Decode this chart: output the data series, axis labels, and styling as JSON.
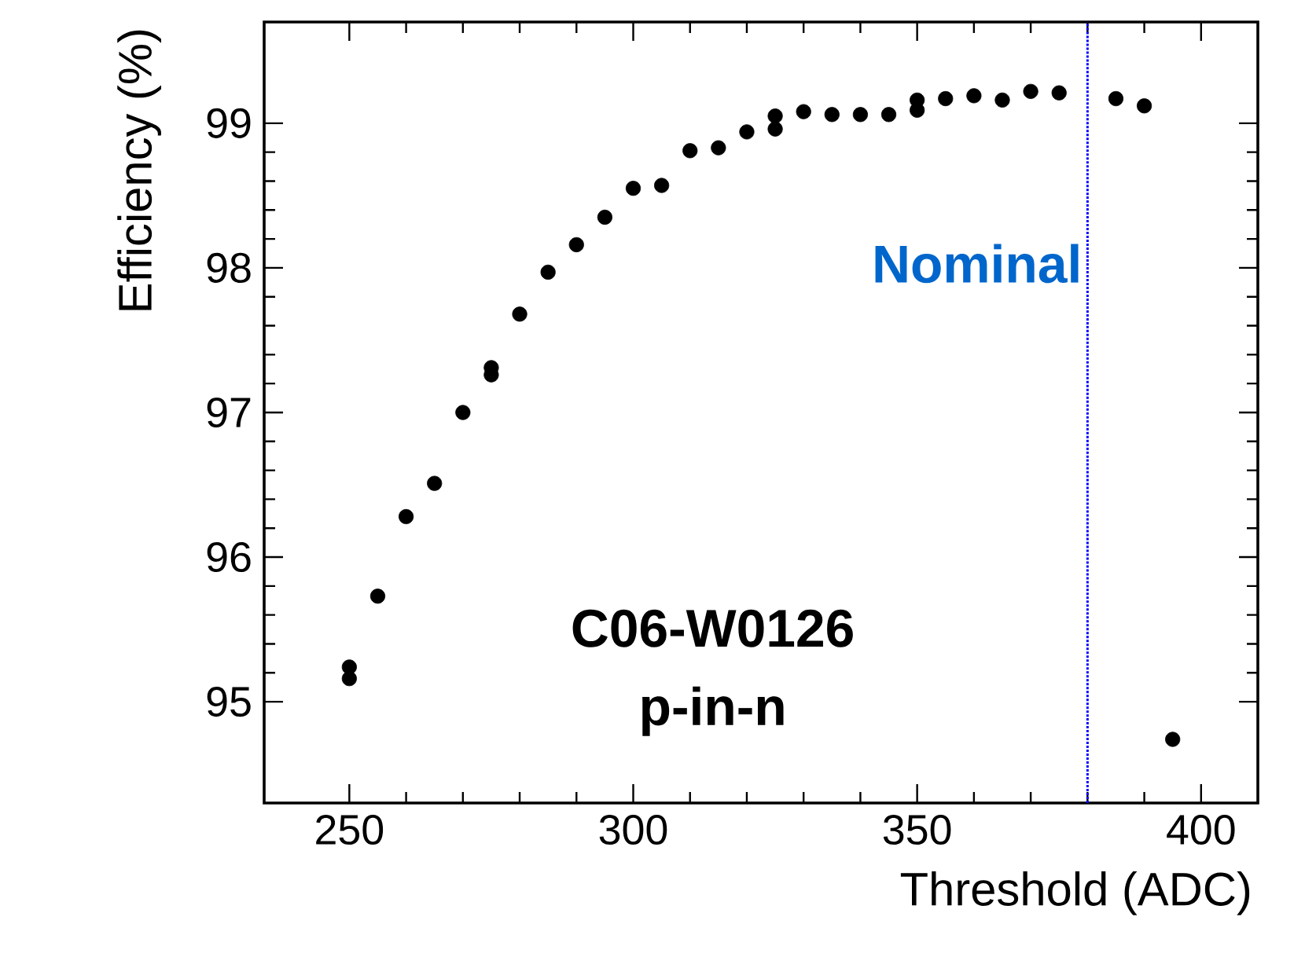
{
  "chart_data": {
    "type": "scatter",
    "xlabel": "Threshold (ADC)",
    "ylabel": "Efficiency (%)",
    "xlim": [
      235,
      410
    ],
    "xticks": [
      250,
      300,
      350,
      400
    ],
    "ylim": [
      94.3,
      99.7
    ],
    "yticks": [
      95,
      96,
      97,
      98,
      99
    ],
    "grid": false,
    "series": [
      {
        "color": "#000000",
        "x": [
          250,
          250,
          255,
          260,
          265,
          270,
          275,
          275,
          280,
          285,
          290,
          295,
          300,
          305,
          310,
          315,
          320,
          325,
          325,
          330,
          335,
          340,
          345,
          350,
          350,
          355,
          360,
          365,
          370,
          375,
          385,
          390,
          395
        ],
        "values": [
          95.24,
          95.16,
          95.73,
          96.28,
          96.51,
          97.0,
          97.31,
          97.26,
          97.68,
          97.97,
          98.16,
          98.35,
          98.55,
          98.57,
          98.81,
          98.83,
          98.94,
          99.05,
          98.96,
          99.08,
          99.06,
          99.06,
          99.06,
          99.16,
          99.09,
          99.17,
          99.19,
          99.16,
          99.22,
          99.21,
          99.17,
          99.12,
          94.74
        ]
      }
    ],
    "ref_lines": [
      {
        "axis": "x",
        "value": 380,
        "label": "Nominal",
        "color": "#0000ff",
        "line_style": "dotted"
      }
    ],
    "annotations": [
      "C06-W0126",
      "p-in-n"
    ]
  }
}
